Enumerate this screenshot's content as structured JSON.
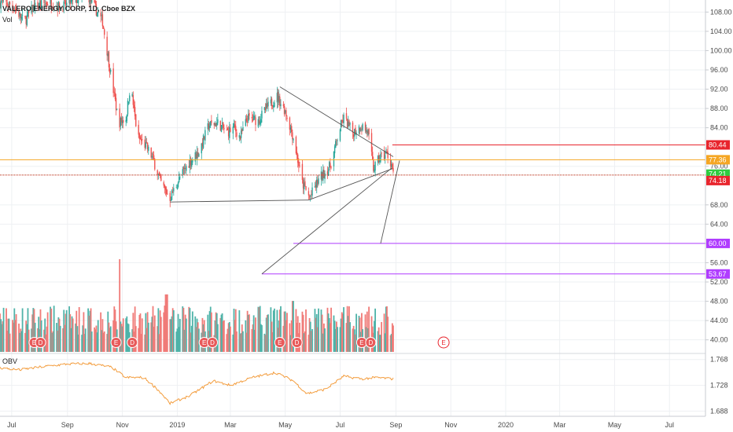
{
  "header": {
    "symbol_title": "VALERO ENERGY CORP, 1D, Cboe BZX",
    "volume_label": "Vol",
    "obv_label": "OBV"
  },
  "colors": {
    "up": "#26a69a",
    "down": "#ef5350",
    "vol_up": "#4fb3a9",
    "vol_down": "#f07b78",
    "obv": "#f39c3c",
    "red_line": "#e8252d",
    "orange_line": "#f5a623",
    "green_line": "#2ecc40",
    "purple_line": "#b03cff",
    "trendline": "#555555",
    "grid": "#eef0f3"
  },
  "chart_data": {
    "type": "candlestick",
    "price_axis": {
      "ticks": [
        "108.00",
        "104.00",
        "100.00",
        "96.00",
        "92.00",
        "88.00",
        "84.00",
        "76.00",
        "68.00",
        "64.00",
        "60.00",
        "56.00",
        "52.00",
        "48.00",
        "44.00",
        "40.00"
      ],
      "range": [
        37.5,
        110.5
      ]
    },
    "obv_axis": {
      "ticks": [
        "1.768",
        "1.728",
        "1.688"
      ],
      "range": [
        1.68,
        1.775
      ]
    },
    "x_axis": {
      "labels": [
        "Jul",
        "Sep",
        "Nov",
        "2019",
        "Mar",
        "May",
        "Jul",
        "Sep",
        "Nov",
        "2020",
        "Mar",
        "May",
        "Jul"
      ],
      "range": [
        "2018-06-18",
        "2020-08-10"
      ]
    },
    "horizontal_levels": [
      {
        "value": 80.44,
        "label": "80.44",
        "color": "red",
        "start": "2019-08-28"
      },
      {
        "value": 77.36,
        "label": "77.36",
        "color": "orange",
        "start": "2018-06-18"
      },
      {
        "value": 74.21,
        "label": "74.21",
        "color": "green",
        "start": "2018-06-18",
        "dotted": true
      },
      {
        "value": 74.18,
        "label": "74.18",
        "color": "red",
        "start": "2018-06-18",
        "dotted": true
      },
      {
        "value": 60.0,
        "label": "60.00",
        "color": "purple",
        "start": "2019-05-10"
      },
      {
        "value": 53.67,
        "label": "53.67",
        "color": "purple",
        "start": "2019-04-05"
      }
    ],
    "trendlines": [
      {
        "from": [
          "2019-04-25",
          92.5
        ],
        "to": [
          "2019-08-29",
          78.0
        ]
      },
      {
        "from": [
          "2018-12-24",
          68.6
        ],
        "to": [
          "2019-05-27",
          69.0
        ]
      },
      {
        "from": [
          "2019-05-27",
          69.0
        ],
        "to": [
          "2019-08-28",
          75.5
        ]
      },
      {
        "from": [
          "2019-04-05",
          53.67
        ],
        "to": [
          "2019-08-27",
          75.6
        ]
      },
      {
        "from": [
          "2019-08-15",
          60.0
        ],
        "to": [
          "2019-09-05",
          77.2
        ]
      }
    ],
    "price_path": [
      [
        "2018-06-18",
        110.0
      ],
      [
        "2018-07-01",
        109.5
      ],
      [
        "2018-07-15",
        106.0
      ],
      [
        "2018-07-25",
        109.0
      ],
      [
        "2018-08-10",
        110.0
      ],
      [
        "2018-08-25",
        109.0
      ],
      [
        "2018-09-10",
        110.5
      ],
      [
        "2018-09-25",
        111.0
      ],
      [
        "2018-10-10",
        106.0
      ],
      [
        "2018-10-20",
        94.0
      ],
      [
        "2018-10-28",
        85.0
      ],
      [
        "2018-11-05",
        86.0
      ],
      [
        "2018-11-10",
        93.0
      ],
      [
        "2018-11-18",
        82.0
      ],
      [
        "2018-11-28",
        80.0
      ],
      [
        "2018-12-05",
        77.5
      ],
      [
        "2018-12-15",
        72.0
      ],
      [
        "2018-12-24",
        69.5
      ],
      [
        "2019-01-05",
        74.0
      ],
      [
        "2019-01-15",
        77.0
      ],
      [
        "2019-01-25",
        79.0
      ],
      [
        "2019-02-05",
        84.5
      ],
      [
        "2019-02-15",
        85.0
      ],
      [
        "2019-02-25",
        83.0
      ],
      [
        "2019-03-05",
        84.0
      ],
      [
        "2019-03-12",
        82.0
      ],
      [
        "2019-03-20",
        86.0
      ],
      [
        "2019-04-01",
        85.5
      ],
      [
        "2019-04-10",
        88.0
      ],
      [
        "2019-04-22",
        90.5
      ],
      [
        "2019-05-01",
        87.5
      ],
      [
        "2019-05-10",
        82.0
      ],
      [
        "2019-05-20",
        72.5
      ],
      [
        "2019-05-28",
        69.5
      ],
      [
        "2019-06-08",
        73.5
      ],
      [
        "2019-06-20",
        76.0
      ],
      [
        "2019-07-01",
        84.0
      ],
      [
        "2019-07-05",
        86.0
      ],
      [
        "2019-07-15",
        83.0
      ],
      [
        "2019-07-25",
        84.5
      ],
      [
        "2019-08-01",
        83.0
      ],
      [
        "2019-08-07",
        75.5
      ],
      [
        "2019-08-15",
        78.0
      ],
      [
        "2019-08-22",
        78.5
      ],
      [
        "2019-08-27",
        76.5
      ],
      [
        "2019-08-29",
        74.2
      ]
    ],
    "volume_spikes": [
      {
        "date": "2018-10-28",
        "fraction": 1.0
      },
      {
        "date": "2018-12-20",
        "fraction": 0.62
      },
      {
        "date": "2019-05-10",
        "fraction": 0.55
      }
    ],
    "obv_path": [
      [
        "2018-06-18",
        1.755
      ],
      [
        "2018-07-10",
        1.752
      ],
      [
        "2018-08-05",
        1.757
      ],
      [
        "2018-09-01",
        1.761
      ],
      [
        "2018-09-25",
        1.762
      ],
      [
        "2018-10-20",
        1.756
      ],
      [
        "2018-11-05",
        1.74
      ],
      [
        "2018-11-25",
        1.74
      ],
      [
        "2018-12-10",
        1.722
      ],
      [
        "2018-12-24",
        1.7
      ],
      [
        "2019-01-15",
        1.712
      ],
      [
        "2019-02-10",
        1.735
      ],
      [
        "2019-03-01",
        1.728
      ],
      [
        "2019-03-25",
        1.74
      ],
      [
        "2019-04-20",
        1.748
      ],
      [
        "2019-05-10",
        1.735
      ],
      [
        "2019-05-25",
        1.715
      ],
      [
        "2019-06-15",
        1.722
      ],
      [
        "2019-07-05",
        1.742
      ],
      [
        "2019-07-25",
        1.738
      ],
      [
        "2019-08-10",
        1.74
      ],
      [
        "2019-08-29",
        1.738
      ]
    ],
    "events": [
      {
        "date": "2018-07-26",
        "label": "E",
        "kind": "filled"
      },
      {
        "date": "2018-08-02",
        "label": "D",
        "kind": "filled"
      },
      {
        "date": "2018-10-25",
        "label": "E",
        "kind": "filled"
      },
      {
        "date": "2018-11-12",
        "label": "D",
        "kind": "filled"
      },
      {
        "date": "2019-01-31",
        "label": "E",
        "kind": "filled"
      },
      {
        "date": "2019-02-09",
        "label": "D",
        "kind": "filled"
      },
      {
        "date": "2019-04-25",
        "label": "E",
        "kind": "filled"
      },
      {
        "date": "2019-05-14",
        "label": "D",
        "kind": "filled"
      },
      {
        "date": "2019-07-25",
        "label": "E",
        "kind": "filled"
      },
      {
        "date": "2019-08-04",
        "label": "D",
        "kind": "filled"
      },
      {
        "date": "2019-10-24",
        "label": "E",
        "kind": "future"
      }
    ],
    "last_data_date": "2019-08-29"
  }
}
